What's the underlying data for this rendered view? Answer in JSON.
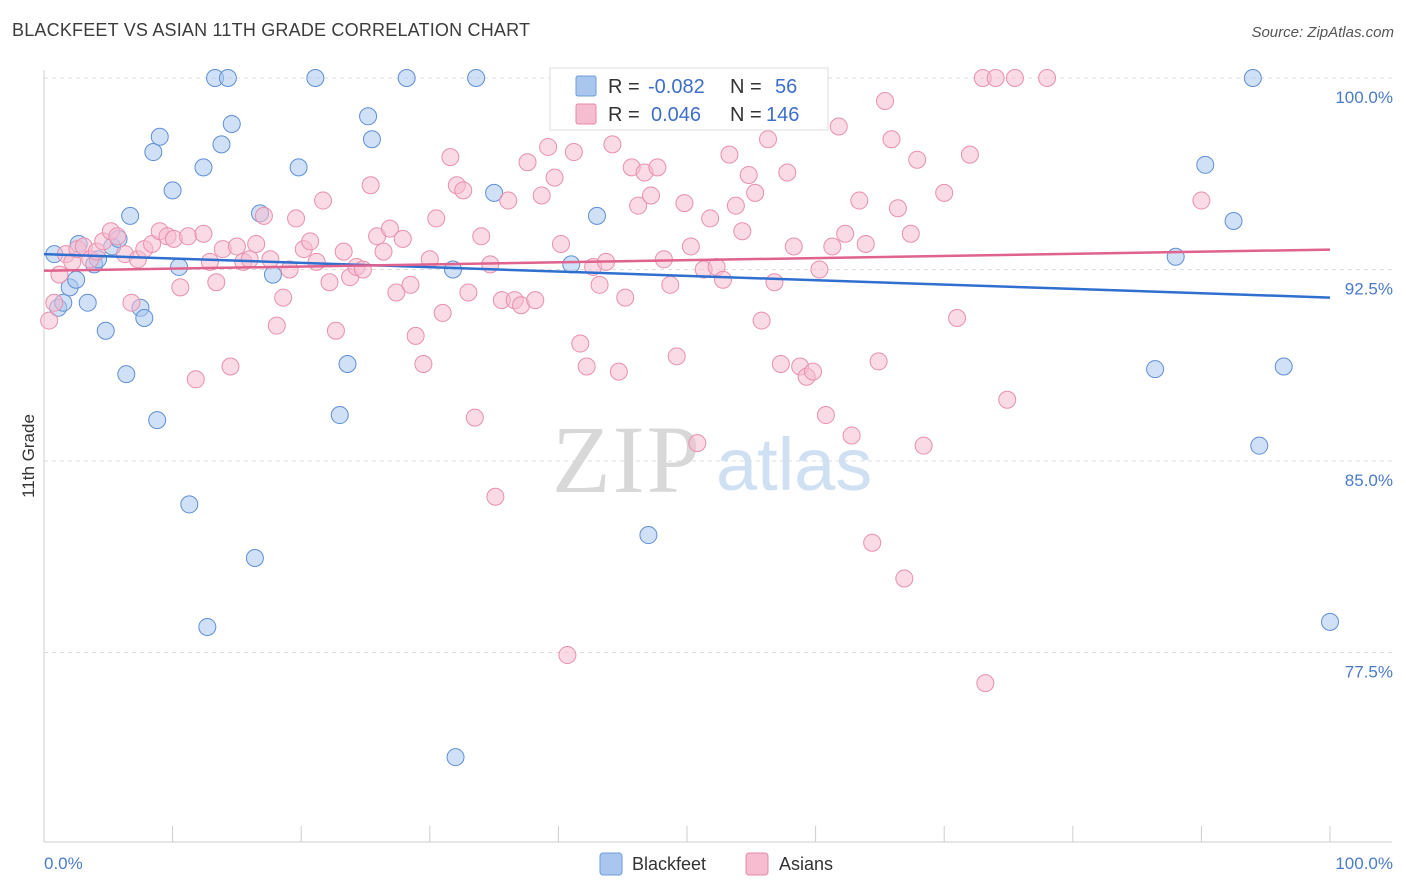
{
  "header": {
    "title": "BLACKFEET VS ASIAN 11TH GRADE CORRELATION CHART",
    "source": "Source: ZipAtlas.com"
  },
  "watermark": {
    "zip": "ZIP",
    "atlas": "atlas"
  },
  "legend_box": {
    "rows": [
      {
        "r_label": "R =",
        "r_value": "-0.082",
        "n_label": "N =",
        "n_value": "56",
        "color": "#a9c6ef",
        "stroke": "#6f9ed8"
      },
      {
        "r_label": "R =",
        "r_value": "0.046",
        "n_label": "N =",
        "n_value": "146",
        "color": "#f6bcd0",
        "stroke": "#e58aa8"
      }
    ]
  },
  "bottom_legend": {
    "items": [
      {
        "label": "Blackfeet"
      },
      {
        "label": "Asians"
      }
    ]
  },
  "chart_data": {
    "type": "scatter",
    "title": "BLACKFEET VS ASIAN 11TH GRADE CORRELATION CHART",
    "xlabel": "",
    "ylabel": "11th Grade",
    "xlim": [
      0,
      100
    ],
    "ylim": [
      70.5,
      100.5
    ],
    "x_tick_labels": [
      "0.0%",
      "100.0%"
    ],
    "y_ticks": [
      {
        "value": 100.0,
        "label": "100.0%"
      },
      {
        "value": 92.5,
        "label": "92.5%"
      },
      {
        "value": 85.0,
        "label": "85.0%"
      },
      {
        "value": 77.5,
        "label": "77.5%"
      }
    ],
    "grid": true,
    "legend_position": "bottom-center",
    "series": [
      {
        "name": "Blackfeet",
        "color": "#a9c6ef",
        "stroke": "#5f8fd6",
        "trend": {
          "x": [
            0,
            100
          ],
          "y": [
            93.1,
            91.4
          ],
          "color": "#2f6fcf"
        },
        "points": [
          [
            0.8,
            93.1
          ],
          [
            1.1,
            91.0
          ],
          [
            1.5,
            91.2
          ],
          [
            2.0,
            91.8
          ],
          [
            2.5,
            92.1
          ],
          [
            2.7,
            93.5
          ],
          [
            3.4,
            91.2
          ],
          [
            3.9,
            92.7
          ],
          [
            4.2,
            92.9
          ],
          [
            4.8,
            90.1
          ],
          [
            5.3,
            93.4
          ],
          [
            5.8,
            93.7
          ],
          [
            6.4,
            88.4
          ],
          [
            6.7,
            94.6
          ],
          [
            7.5,
            91.0
          ],
          [
            7.8,
            90.6
          ],
          [
            8.5,
            97.1
          ],
          [
            8.8,
            86.6
          ],
          [
            9.0,
            97.7
          ],
          [
            10.0,
            95.6
          ],
          [
            10.5,
            92.6
          ],
          [
            11.3,
            83.3
          ],
          [
            12.4,
            96.5
          ],
          [
            12.7,
            78.5
          ],
          [
            13.3,
            100.0
          ],
          [
            13.8,
            97.4
          ],
          [
            14.3,
            100.0
          ],
          [
            14.6,
            98.2
          ],
          [
            16.4,
            81.2
          ],
          [
            16.8,
            94.7
          ],
          [
            17.8,
            92.3
          ],
          [
            19.8,
            96.5
          ],
          [
            21.1,
            100.0
          ],
          [
            23.0,
            86.8
          ],
          [
            23.6,
            88.8
          ],
          [
            25.2,
            98.5
          ],
          [
            25.5,
            97.6
          ],
          [
            28.2,
            100.0
          ],
          [
            31.8,
            92.5
          ],
          [
            32.0,
            73.4
          ],
          [
            33.6,
            100.0
          ],
          [
            35.0,
            95.5
          ],
          [
            41.0,
            92.7
          ],
          [
            43.0,
            94.6
          ],
          [
            47.0,
            82.1
          ],
          [
            48.0,
            100.0
          ],
          [
            49.0,
            100.0
          ],
          [
            50.0,
            100.0
          ],
          [
            86.4,
            88.6
          ],
          [
            88.0,
            93.0
          ],
          [
            90.3,
            96.6
          ],
          [
            92.5,
            94.4
          ],
          [
            94.0,
            100.0
          ],
          [
            94.5,
            85.6
          ],
          [
            96.4,
            88.7
          ],
          [
            100.0,
            78.7
          ]
        ]
      },
      {
        "name": "Asians",
        "color": "#f6bcd0",
        "stroke": "#e890ad",
        "trend": {
          "x": [
            0,
            100
          ],
          "y": [
            92.45,
            93.28
          ],
          "color": "#e0628e"
        },
        "points": [
          [
            0.4,
            90.5
          ],
          [
            0.8,
            91.2
          ],
          [
            1.2,
            92.3
          ],
          [
            1.7,
            93.1
          ],
          [
            2.2,
            92.8
          ],
          [
            2.6,
            93.3
          ],
          [
            3.1,
            93.4
          ],
          [
            3.6,
            92.9
          ],
          [
            4.1,
            93.2
          ],
          [
            4.6,
            93.6
          ],
          [
            5.2,
            94.0
          ],
          [
            5.7,
            93.8
          ],
          [
            6.3,
            93.1
          ],
          [
            6.8,
            91.2
          ],
          [
            7.3,
            92.9
          ],
          [
            7.8,
            93.3
          ],
          [
            8.4,
            93.5
          ],
          [
            9.0,
            94.0
          ],
          [
            9.6,
            93.8
          ],
          [
            10.1,
            93.7
          ],
          [
            10.6,
            91.8
          ],
          [
            11.2,
            93.8
          ],
          [
            11.8,
            88.2
          ],
          [
            12.4,
            93.9
          ],
          [
            12.9,
            92.8
          ],
          [
            13.4,
            92.0
          ],
          [
            13.9,
            93.3
          ],
          [
            14.5,
            88.7
          ],
          [
            15.0,
            93.4
          ],
          [
            15.5,
            92.8
          ],
          [
            16.0,
            92.9
          ],
          [
            16.5,
            93.5
          ],
          [
            17.1,
            94.6
          ],
          [
            17.6,
            92.9
          ],
          [
            18.1,
            90.3
          ],
          [
            18.6,
            91.4
          ],
          [
            19.1,
            92.5
          ],
          [
            19.6,
            94.5
          ],
          [
            20.2,
            93.3
          ],
          [
            20.7,
            93.6
          ],
          [
            21.2,
            92.8
          ],
          [
            21.7,
            95.2
          ],
          [
            22.2,
            92.0
          ],
          [
            22.7,
            90.1
          ],
          [
            23.3,
            93.2
          ],
          [
            23.8,
            92.2
          ],
          [
            24.3,
            92.6
          ],
          [
            24.8,
            92.5
          ],
          [
            25.4,
            95.8
          ],
          [
            25.9,
            93.8
          ],
          [
            26.4,
            93.2
          ],
          [
            26.9,
            94.1
          ],
          [
            27.4,
            91.6
          ],
          [
            27.9,
            93.7
          ],
          [
            28.5,
            91.9
          ],
          [
            28.9,
            89.9
          ],
          [
            29.5,
            88.8
          ],
          [
            30.0,
            92.9
          ],
          [
            30.5,
            94.5
          ],
          [
            31.0,
            90.8
          ],
          [
            31.6,
            96.9
          ],
          [
            32.1,
            95.8
          ],
          [
            32.6,
            95.6
          ],
          [
            33.0,
            91.6
          ],
          [
            33.5,
            86.7
          ],
          [
            34.0,
            93.8
          ],
          [
            34.7,
            92.7
          ],
          [
            35.1,
            83.6
          ],
          [
            35.6,
            91.3
          ],
          [
            36.1,
            95.2
          ],
          [
            36.6,
            91.3
          ],
          [
            37.1,
            91.1
          ],
          [
            37.6,
            96.7
          ],
          [
            38.2,
            91.3
          ],
          [
            38.7,
            95.4
          ],
          [
            39.2,
            97.3
          ],
          [
            39.7,
            96.1
          ],
          [
            40.2,
            93.5
          ],
          [
            40.7,
            77.4
          ],
          [
            41.2,
            97.1
          ],
          [
            41.7,
            89.6
          ],
          [
            42.2,
            88.7
          ],
          [
            42.7,
            92.6
          ],
          [
            43.2,
            91.9
          ],
          [
            43.7,
            92.8
          ],
          [
            44.2,
            97.4
          ],
          [
            44.7,
            88.5
          ],
          [
            45.2,
            91.4
          ],
          [
            45.7,
            96.5
          ],
          [
            46.2,
            95.0
          ],
          [
            46.7,
            96.3
          ],
          [
            47.2,
            95.4
          ],
          [
            47.7,
            96.5
          ],
          [
            48.2,
            92.9
          ],
          [
            48.7,
            91.9
          ],
          [
            49.2,
            89.1
          ],
          [
            49.8,
            95.1
          ],
          [
            50.3,
            93.4
          ],
          [
            50.8,
            85.7
          ],
          [
            51.3,
            92.5
          ],
          [
            51.8,
            94.5
          ],
          [
            52.3,
            92.6
          ],
          [
            52.8,
            92.1
          ],
          [
            53.3,
            97.0
          ],
          [
            53.8,
            95.0
          ],
          [
            54.3,
            94.0
          ],
          [
            54.8,
            96.2
          ],
          [
            55.3,
            95.5
          ],
          [
            55.8,
            90.5
          ],
          [
            56.3,
            97.6
          ],
          [
            56.8,
            92.0
          ],
          [
            57.3,
            88.8
          ],
          [
            57.8,
            96.3
          ],
          [
            58.3,
            93.4
          ],
          [
            58.8,
            88.7
          ],
          [
            59.3,
            88.3
          ],
          [
            59.8,
            88.5
          ],
          [
            60.3,
            92.5
          ],
          [
            60.8,
            86.8
          ],
          [
            61.3,
            93.4
          ],
          [
            61.8,
            98.1
          ],
          [
            62.3,
            93.9
          ],
          [
            62.8,
            86.0
          ],
          [
            63.4,
            95.2
          ],
          [
            63.9,
            93.5
          ],
          [
            64.4,
            81.8
          ],
          [
            64.9,
            88.9
          ],
          [
            65.4,
            99.1
          ],
          [
            65.9,
            97.6
          ],
          [
            66.4,
            94.9
          ],
          [
            66.9,
            80.4
          ],
          [
            67.4,
            93.9
          ],
          [
            67.9,
            96.8
          ],
          [
            68.4,
            85.6
          ],
          [
            70.0,
            95.5
          ],
          [
            71.0,
            90.6
          ],
          [
            72.0,
            97.0
          ],
          [
            73.0,
            100.0
          ],
          [
            74.0,
            100.0
          ],
          [
            75.5,
            100.0
          ],
          [
            78.0,
            100.0
          ],
          [
            74.9,
            87.4
          ],
          [
            73.2,
            76.3
          ],
          [
            90.0,
            95.2
          ]
        ]
      }
    ]
  }
}
